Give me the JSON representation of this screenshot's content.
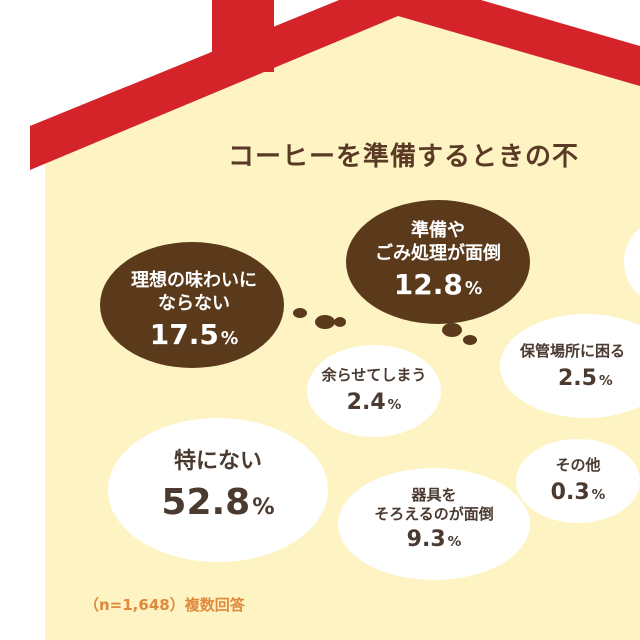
{
  "title": "コーヒーを準備するときの不",
  "note": "（n=1,648）複数回答",
  "colors": {
    "wall": "#fdf3c3",
    "roof": "#d4242a",
    "bubble_dark": "#5b3a1c",
    "bubble_light": "#ffffff",
    "text_dark": "#4a3a30",
    "note": "#e0893c"
  },
  "chart_data": {
    "type": "bubble",
    "unit": "%",
    "categories": [
      {
        "label": "理想の味わいにならない",
        "value": 17.5
      },
      {
        "label": "準備やごみ処理が面倒",
        "value": 12.8
      },
      {
        "label": "余らせてしまう",
        "value": 2.4
      },
      {
        "label": "保管場所に困る",
        "value": 2.5
      },
      {
        "label": "特にない",
        "value": 52.8
      },
      {
        "label": "その他",
        "value": 0.3
      },
      {
        "label": "器具をそろえるのが面倒",
        "value": 9.3
      }
    ]
  },
  "display": {
    "b1": {
      "line1": "理想の味わいに",
      "line2": "ならない",
      "value": "17.5",
      "unit": "%"
    },
    "b2": {
      "line1": "準備や",
      "line2": "ごみ処理が面倒",
      "value": "12.8",
      "unit": "%"
    },
    "b3": {
      "line1": "余らせてしまう",
      "value": "2.4",
      "unit": "%"
    },
    "b4": {
      "line1": "保管場所に困る",
      "value": "2.5",
      "unit": "%"
    },
    "b5": {
      "line1": "特にない",
      "value": "52.8",
      "unit": "%"
    },
    "b6": {
      "line1": "その他",
      "value": "0.3",
      "unit": "%"
    },
    "b7": {
      "line1": "器具を",
      "line2": "そろえるのが面倒",
      "value": "9.3",
      "unit": "%"
    }
  }
}
